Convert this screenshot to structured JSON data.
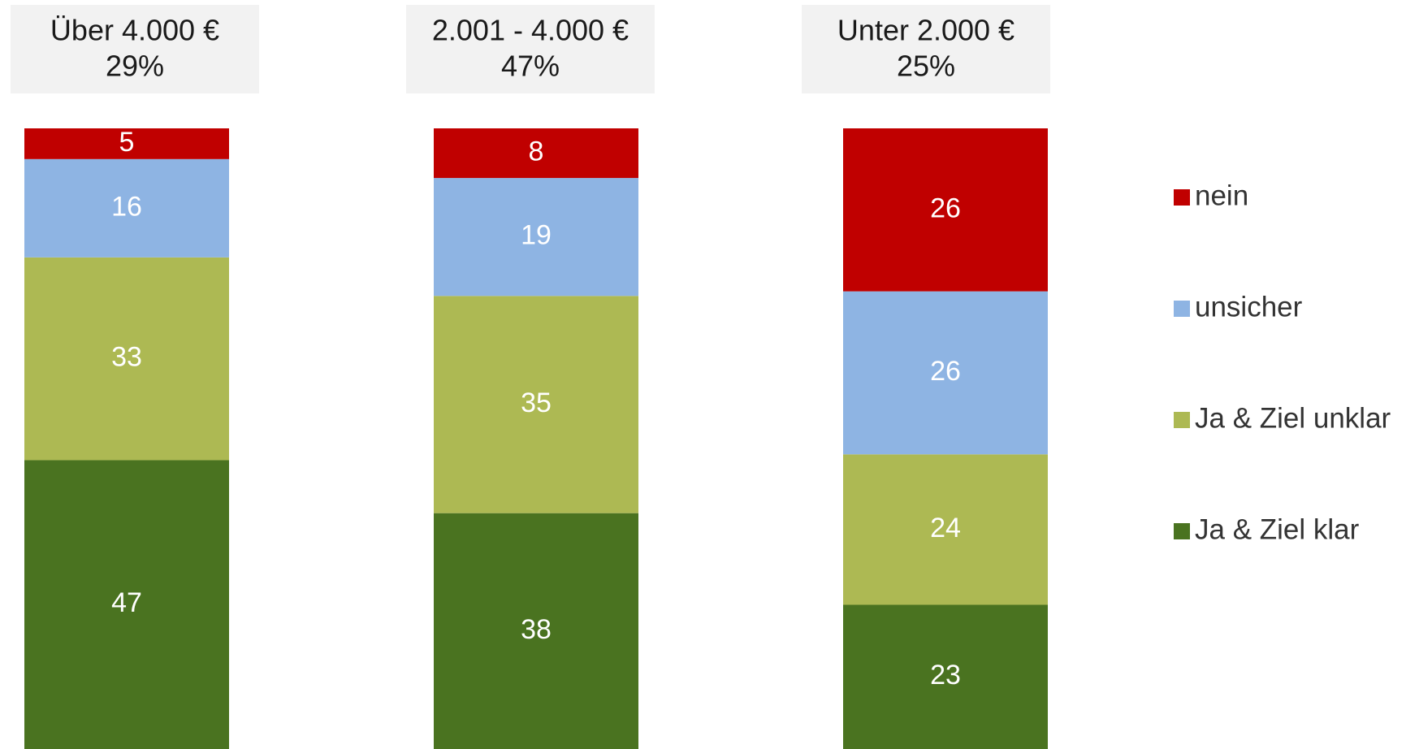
{
  "chart_data": {
    "type": "bar",
    "stacked_percent": true,
    "categories": [
      "Über 4.000 €",
      "2.001 - 4.000 €",
      "Unter 2.000 €"
    ],
    "category_shares": [
      "29%",
      "47%",
      "25%"
    ],
    "series": [
      {
        "name": "Ja & Ziel klar",
        "color": "#4a7320",
        "values": [
          47,
          38,
          23
        ]
      },
      {
        "name": "Ja & Ziel unklar",
        "color": "#adb953",
        "values": [
          33,
          35,
          24
        ]
      },
      {
        "name": "unsicher",
        "color": "#8eb4e3",
        "values": [
          16,
          19,
          26
        ]
      },
      {
        "name": "nein",
        "color": "#c00000",
        "values": [
          5,
          8,
          26
        ]
      }
    ],
    "legend": "right"
  }
}
